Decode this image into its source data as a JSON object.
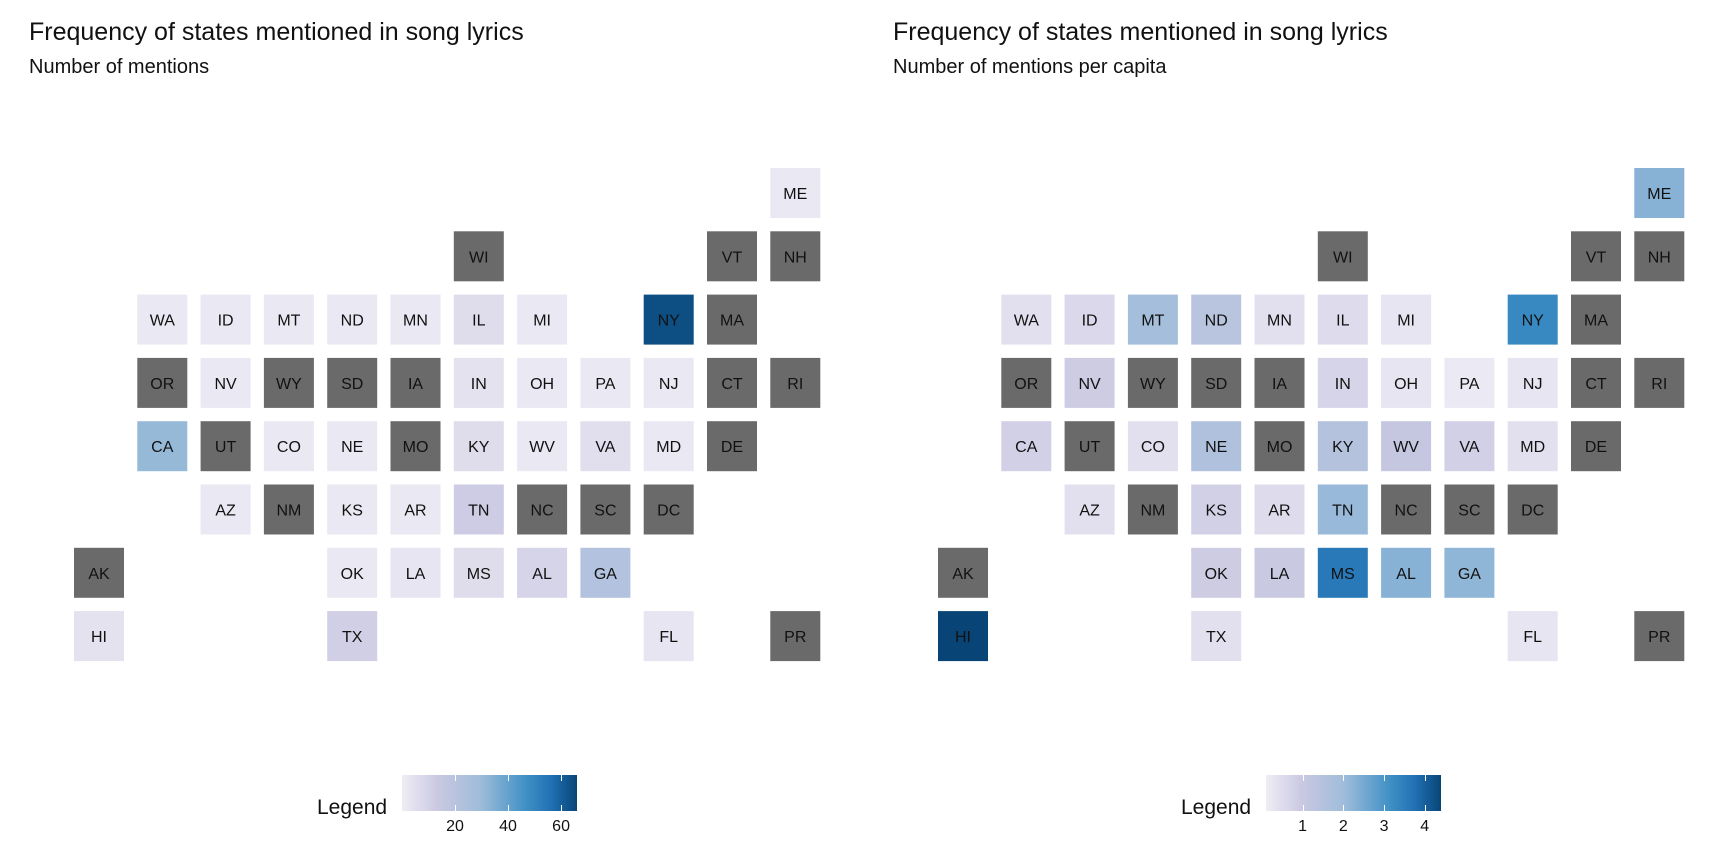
{
  "chart_data": [
    {
      "type": "heatmap",
      "title": "Frequency of states mentioned in song lyrics",
      "subtitle": "Number of mentions",
      "legend": {
        "title": "Legend",
        "range": [
          0,
          66
        ],
        "ticks": [
          20,
          40,
          60
        ],
        "tick_labels": [
          "20",
          "40",
          "60"
        ],
        "placement": "bottom-center"
      },
      "missing_color": "#6a6a6a",
      "states": [
        {
          "state": "ME",
          "value": 2
        },
        {
          "state": "WI",
          "value": null
        },
        {
          "state": "VT",
          "value": null
        },
        {
          "state": "NH",
          "value": null
        },
        {
          "state": "WA",
          "value": 2
        },
        {
          "state": "ID",
          "value": 2
        },
        {
          "state": "MT",
          "value": 2
        },
        {
          "state": "ND",
          "value": 2
        },
        {
          "state": "MN",
          "value": 2
        },
        {
          "state": "IL",
          "value": 6
        },
        {
          "state": "MI",
          "value": 2
        },
        {
          "state": "NY",
          "value": 64
        },
        {
          "state": "MA",
          "value": null
        },
        {
          "state": "OR",
          "value": null
        },
        {
          "state": "NV",
          "value": 2
        },
        {
          "state": "WY",
          "value": null
        },
        {
          "state": "SD",
          "value": null
        },
        {
          "state": "IA",
          "value": null
        },
        {
          "state": "IN",
          "value": 4
        },
        {
          "state": "OH",
          "value": 2
        },
        {
          "state": "PA",
          "value": 2
        },
        {
          "state": "NJ",
          "value": 2
        },
        {
          "state": "CT",
          "value": null
        },
        {
          "state": "RI",
          "value": null
        },
        {
          "state": "CA",
          "value": 31
        },
        {
          "state": "UT",
          "value": null
        },
        {
          "state": "CO",
          "value": 2
        },
        {
          "state": "NE",
          "value": 2
        },
        {
          "state": "MO",
          "value": null
        },
        {
          "state": "KY",
          "value": 6
        },
        {
          "state": "WV",
          "value": 2
        },
        {
          "state": "VA",
          "value": 5
        },
        {
          "state": "MD",
          "value": 2
        },
        {
          "state": "DE",
          "value": null
        },
        {
          "state": "AZ",
          "value": 2
        },
        {
          "state": "NM",
          "value": null
        },
        {
          "state": "KS",
          "value": 2
        },
        {
          "state": "AR",
          "value": 2
        },
        {
          "state": "TN",
          "value": 12
        },
        {
          "state": "NC",
          "value": null
        },
        {
          "state": "SC",
          "value": null
        },
        {
          "state": "DC",
          "value": null
        },
        {
          "state": "AK",
          "value": null
        },
        {
          "state": "OK",
          "value": 2
        },
        {
          "state": "LA",
          "value": 3
        },
        {
          "state": "MS",
          "value": 6
        },
        {
          "state": "AL",
          "value": 9
        },
        {
          "state": "GA",
          "value": 22
        },
        {
          "state": "HI",
          "value": 4
        },
        {
          "state": "TX",
          "value": 11
        },
        {
          "state": "FL",
          "value": 3
        },
        {
          "state": "PR",
          "value": null
        }
      ]
    },
    {
      "type": "heatmap",
      "title": "Frequency of states mentioned in song lyrics",
      "subtitle": "Number of mentions per capita",
      "legend": {
        "title": "Legend",
        "range": [
          0.1,
          4.4
        ],
        "ticks": [
          1,
          2,
          3,
          4
        ],
        "tick_labels": [
          "1",
          "2",
          "3",
          "4"
        ],
        "placement": "bottom-center"
      },
      "missing_color": "#6a6a6a",
      "states": [
        {
          "state": "ME",
          "value": 2.3
        },
        {
          "state": "WI",
          "value": null
        },
        {
          "state": "VT",
          "value": null
        },
        {
          "state": "NH",
          "value": null
        },
        {
          "state": "WA",
          "value": 0.4
        },
        {
          "state": "ID",
          "value": 0.6
        },
        {
          "state": "MT",
          "value": 1.9
        },
        {
          "state": "ND",
          "value": 1.4
        },
        {
          "state": "MN",
          "value": 0.4
        },
        {
          "state": "IL",
          "value": 0.5
        },
        {
          "state": "MI",
          "value": 0.3
        },
        {
          "state": "NY",
          "value": 3.3
        },
        {
          "state": "MA",
          "value": null
        },
        {
          "state": "OR",
          "value": null
        },
        {
          "state": "NV",
          "value": 0.9
        },
        {
          "state": "WY",
          "value": null
        },
        {
          "state": "SD",
          "value": null
        },
        {
          "state": "IA",
          "value": null
        },
        {
          "state": "IN",
          "value": 0.7
        },
        {
          "state": "OH",
          "value": 0.3
        },
        {
          "state": "PA",
          "value": 0.2
        },
        {
          "state": "NJ",
          "value": 0.3
        },
        {
          "state": "CT",
          "value": null
        },
        {
          "state": "RI",
          "value": null
        },
        {
          "state": "CA",
          "value": 0.8
        },
        {
          "state": "UT",
          "value": null
        },
        {
          "state": "CO",
          "value": 0.4
        },
        {
          "state": "NE",
          "value": 1.6
        },
        {
          "state": "MO",
          "value": null
        },
        {
          "state": "KY",
          "value": 1.5
        },
        {
          "state": "WV",
          "value": 1.1
        },
        {
          "state": "VA",
          "value": 0.8
        },
        {
          "state": "MD",
          "value": 0.4
        },
        {
          "state": "DE",
          "value": null
        },
        {
          "state": "AZ",
          "value": 0.4
        },
        {
          "state": "NM",
          "value": null
        },
        {
          "state": "KS",
          "value": 0.8
        },
        {
          "state": "AR",
          "value": 0.5
        },
        {
          "state": "TN",
          "value": 2.1
        },
        {
          "state": "NC",
          "value": null
        },
        {
          "state": "SC",
          "value": null
        },
        {
          "state": "DC",
          "value": null
        },
        {
          "state": "AK",
          "value": null
        },
        {
          "state": "OK",
          "value": 0.9
        },
        {
          "state": "LA",
          "value": 1.0
        },
        {
          "state": "MS",
          "value": 3.6
        },
        {
          "state": "AL",
          "value": 2.3
        },
        {
          "state": "GA",
          "value": 2.2
        },
        {
          "state": "HI",
          "value": 4.4
        },
        {
          "state": "TX",
          "value": 0.4
        },
        {
          "state": "FL",
          "value": 0.3
        },
        {
          "state": "PR",
          "value": null
        }
      ]
    }
  ]
}
